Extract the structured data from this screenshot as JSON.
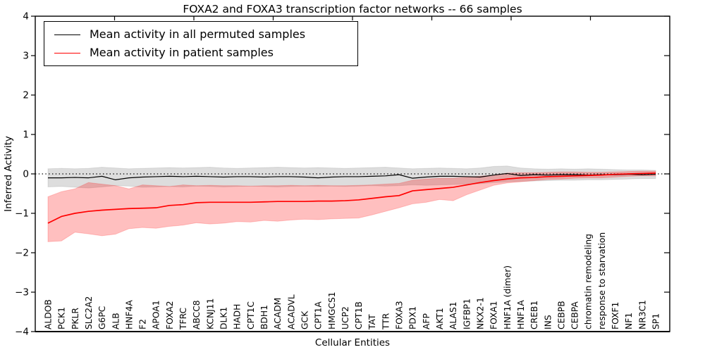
{
  "figure": {
    "title": "FOXA2 and FOXA3 transcription factor networks -- 66 samples",
    "xlabel": "Cellular Entities",
    "ylabel": "Inferred Activity"
  },
  "legend": {
    "items": [
      {
        "label": "Mean activity in all permuted samples",
        "color": "#000000"
      },
      {
        "label": "Mean activity in patient samples",
        "color": "#ff0000"
      }
    ]
  },
  "chart_data": {
    "type": "line",
    "title": "FOXA2 and FOXA3 transcription factor networks -- 66 samples",
    "xlabel": "Cellular Entities",
    "ylabel": "Inferred Activity",
    "ylim": [
      -4,
      4
    ],
    "yticks": [
      -4,
      -3,
      -2,
      -1,
      0,
      1,
      2,
      3,
      4
    ],
    "grid": false,
    "zero_line": "dotted",
    "legend_position": "upper left",
    "categories": [
      "ALDOB",
      "PCK1",
      "PKLR",
      "SLC2A2",
      "G6PC",
      "ALB",
      "HNF4A",
      "F2",
      "APOA1",
      "FOXA2",
      "TFRC",
      "ABCC8",
      "KCNJ11",
      "DLK1",
      "HADH",
      "CPT1C",
      "BDH1",
      "ACADM",
      "ACADVL",
      "GCK",
      "CPT1A",
      "HMGCS1",
      "UCP2",
      "CPT1B",
      "TAT",
      "TTR",
      "FOXA3",
      "PDX1",
      "AFP",
      "AKT1",
      "ALAS1",
      "IGFBP1",
      "NKX2-1",
      "FOXA1",
      "HNF1A (dimer)",
      "HNF1A",
      "CREB1",
      "INS",
      "CEBPB",
      "CEBPA",
      "chromatin remodeling",
      "response to starvation",
      "FOXF1",
      "NF1",
      "NR3C1",
      "SP1"
    ],
    "series": [
      {
        "name": "Mean activity in all permuted samples",
        "color": "#000000",
        "line_width": 1.2,
        "band_color": "#00000022",
        "band_edge_color": "#00000018",
        "values": [
          -0.1,
          -0.1,
          -0.09,
          -0.1,
          -0.06,
          -0.15,
          -0.1,
          -0.08,
          -0.07,
          -0.06,
          -0.07,
          -0.06,
          -0.07,
          -0.08,
          -0.07,
          -0.07,
          -0.08,
          -0.07,
          -0.07,
          -0.08,
          -0.1,
          -0.08,
          -0.07,
          -0.07,
          -0.06,
          -0.05,
          -0.02,
          -0.11,
          -0.08,
          -0.06,
          -0.06,
          -0.07,
          -0.08,
          -0.03,
          0.01,
          -0.04,
          -0.02,
          -0.03,
          -0.02,
          -0.02,
          -0.03,
          -0.02,
          -0.02,
          -0.01,
          -0.02,
          -0.01
        ],
        "band_upper": [
          0.13,
          0.14,
          0.13,
          0.14,
          0.17,
          0.15,
          0.13,
          0.14,
          0.15,
          0.16,
          0.15,
          0.16,
          0.17,
          0.15,
          0.14,
          0.15,
          0.16,
          0.17,
          0.16,
          0.15,
          0.16,
          0.15,
          0.14,
          0.15,
          0.16,
          0.17,
          0.15,
          0.13,
          0.14,
          0.15,
          0.14,
          0.13,
          0.15,
          0.19,
          0.2,
          0.15,
          0.13,
          0.12,
          0.13,
          0.12,
          0.13,
          0.12,
          0.11,
          0.1,
          0.1,
          0.09
        ],
        "band_lower": [
          -0.33,
          -0.32,
          -0.34,
          -0.36,
          -0.33,
          -0.3,
          -0.31,
          -0.34,
          -0.33,
          -0.32,
          -0.33,
          -0.31,
          -0.32,
          -0.33,
          -0.32,
          -0.31,
          -0.32,
          -0.33,
          -0.32,
          -0.31,
          -0.32,
          -0.31,
          -0.32,
          -0.31,
          -0.3,
          -0.31,
          -0.3,
          -0.28,
          -0.29,
          -0.28,
          -0.27,
          -0.26,
          -0.25,
          -0.22,
          -0.2,
          -0.19,
          -0.18,
          -0.17,
          -0.16,
          -0.16,
          -0.15,
          -0.15,
          -0.14,
          -0.13,
          -0.12,
          -0.12
        ]
      },
      {
        "name": "Mean activity in patient samples",
        "color": "#ff0000",
        "line_width": 1.7,
        "band_color": "#ff000040",
        "band_edge_color": "#ff000030",
        "values": [
          -1.25,
          -1.08,
          -1.0,
          -0.95,
          -0.92,
          -0.9,
          -0.88,
          -0.87,
          -0.86,
          -0.8,
          -0.78,
          -0.73,
          -0.72,
          -0.72,
          -0.72,
          -0.72,
          -0.71,
          -0.7,
          -0.7,
          -0.7,
          -0.69,
          -0.69,
          -0.68,
          -0.66,
          -0.62,
          -0.58,
          -0.55,
          -0.43,
          -0.4,
          -0.37,
          -0.34,
          -0.28,
          -0.22,
          -0.17,
          -0.13,
          -0.1,
          -0.09,
          -0.07,
          -0.06,
          -0.05,
          -0.04,
          -0.03,
          -0.01,
          0.0,
          0.01,
          0.02
        ],
        "band_upper": [
          -0.58,
          -0.45,
          -0.38,
          -0.22,
          -0.26,
          -0.3,
          -0.38,
          -0.28,
          -0.3,
          -0.32,
          -0.28,
          -0.3,
          -0.29,
          -0.3,
          -0.3,
          -0.31,
          -0.3,
          -0.3,
          -0.29,
          -0.3,
          -0.29,
          -0.3,
          -0.3,
          -0.29,
          -0.28,
          -0.26,
          -0.24,
          -0.16,
          -0.13,
          -0.11,
          -0.11,
          -0.09,
          -0.06,
          -0.03,
          0.02,
          0.03,
          0.03,
          0.04,
          0.05,
          0.05,
          0.04,
          0.04,
          0.05,
          0.06,
          0.07,
          0.07
        ],
        "band_lower": [
          -1.72,
          -1.7,
          -1.48,
          -1.52,
          -1.57,
          -1.53,
          -1.39,
          -1.36,
          -1.38,
          -1.33,
          -1.3,
          -1.24,
          -1.27,
          -1.25,
          -1.21,
          -1.22,
          -1.18,
          -1.2,
          -1.17,
          -1.15,
          -1.16,
          -1.14,
          -1.13,
          -1.12,
          -1.04,
          -0.95,
          -0.86,
          -0.76,
          -0.72,
          -0.65,
          -0.68,
          -0.53,
          -0.41,
          -0.29,
          -0.23,
          -0.2,
          -0.17,
          -0.14,
          -0.13,
          -0.11,
          -0.1,
          -0.1,
          -0.08,
          -0.06,
          -0.05,
          -0.05
        ]
      }
    ]
  }
}
